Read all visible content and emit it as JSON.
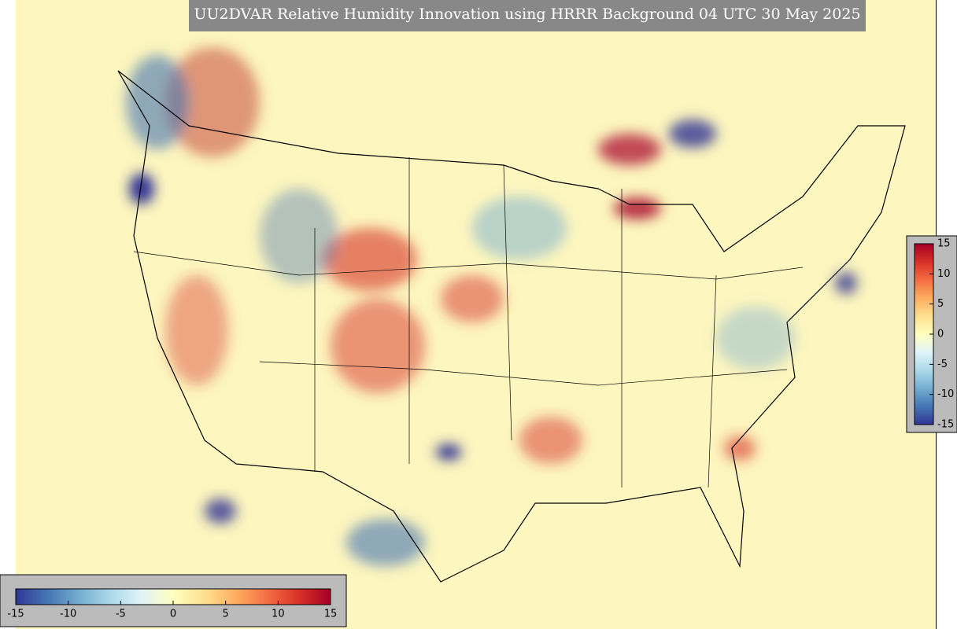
{
  "title": "UU2DVAR Relative Humidity Innovation using HRRR Background 04 UTC 30 May 2025",
  "colormap": [
    "#313695",
    "#4575b4",
    "#74add1",
    "#abd9e9",
    "#e0f3f8",
    "#ffffbf",
    "#fee090",
    "#fdae61",
    "#f46d43",
    "#d73027",
    "#a50026"
  ],
  "colorbars": [
    {
      "orientation": "vertical",
      "range": [
        -15,
        15
      ],
      "ticks": [
        15,
        10,
        5,
        0,
        -5,
        -10,
        -15
      ]
    },
    {
      "orientation": "horizontal",
      "range": [
        -15,
        15
      ],
      "ticks": [
        -15,
        -10,
        -5,
        0,
        5,
        10,
        15
      ]
    }
  ]
}
